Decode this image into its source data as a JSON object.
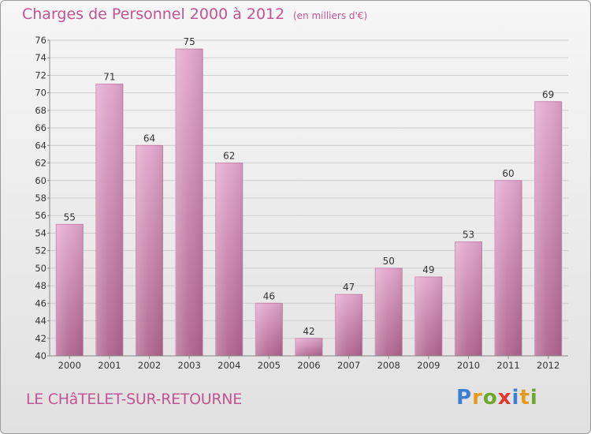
{
  "title": "Charges de Personnel 2000 à 2012",
  "subtitle": "(en milliers d'€)",
  "commune": "LE CHâTELET-SUR-RETOURNE",
  "logo": {
    "text": "Proxiti",
    "letters": [
      {
        "char": "P",
        "color": "#3a7fd1"
      },
      {
        "char": "r",
        "color": "#e89a1f"
      },
      {
        "char": "o",
        "color": "#6aaa2a"
      },
      {
        "char": "x",
        "color": "#e3342f"
      },
      {
        "char": "i",
        "color": "#3a7fd1"
      },
      {
        "char": "t",
        "color": "#e89a1f"
      },
      {
        "char": "i",
        "color": "#6aaa2a"
      }
    ]
  },
  "colors": {
    "accent": "#c25491",
    "bar_top": "#e2a6cd",
    "bar_bottom": "#b0658f",
    "grid": "#cfcfcf",
    "axis_text": "#333333"
  },
  "chart_data": {
    "type": "bar",
    "title": "Charges de Personnel 2000 à 2012",
    "subtitle": "(en milliers d'€)",
    "categories": [
      "2000",
      "2001",
      "2002",
      "2003",
      "2004",
      "2005",
      "2006",
      "2007",
      "2008",
      "2009",
      "2010",
      "2011",
      "2012"
    ],
    "values": [
      55,
      71,
      64,
      75,
      62,
      46,
      42,
      47,
      50,
      49,
      53,
      60,
      69
    ],
    "ylim": [
      40,
      76
    ],
    "yticks": [
      40,
      42,
      44,
      46,
      48,
      50,
      52,
      54,
      56,
      58,
      60,
      62,
      64,
      66,
      68,
      70,
      72,
      74,
      76
    ],
    "grid": true,
    "data_labels": true
  }
}
